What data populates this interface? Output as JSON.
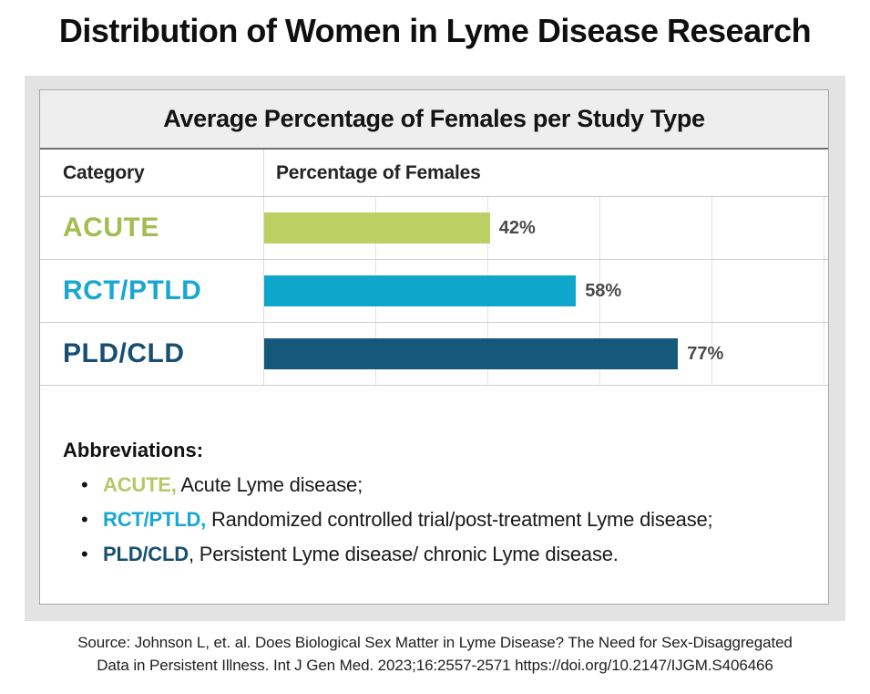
{
  "page_title": "Distribution of Women in Lyme Disease Research",
  "chart_data": {
    "type": "bar",
    "orientation": "horizontal",
    "title": "Average Percentage of Females per Study Type",
    "columns": [
      "Category",
      "Percentage of Females"
    ],
    "categories": [
      "ACUTE",
      "RCT/PTLD",
      "PLD/CLD"
    ],
    "values": [
      42,
      58,
      77
    ],
    "value_labels": [
      "42%",
      "58%",
      "77%"
    ],
    "bar_colors": [
      "#bccf63",
      "#0fa6cc",
      "#15587b"
    ],
    "label_colors": [
      "#a2bd50",
      "#18a7d3",
      "#174f71"
    ],
    "xlim": [
      0,
      100
    ],
    "grid": true,
    "gridline_step_percent": 20
  },
  "abbreviations": {
    "heading": "Abbreviations:",
    "bullet_icon": "•",
    "items": [
      {
        "term": "ACUTE,",
        "term_color": "#b4c96b",
        "text": " Acute Lyme disease;"
      },
      {
        "term": "RCT/PTLD,",
        "term_color": "#18a7d3",
        "text": " Randomized controlled trial/post-treatment Lyme disease;"
      },
      {
        "term": "PLD/CLD",
        "term_color": "#174f71",
        "text": ", Persistent Lyme disease/ chronic Lyme disease."
      }
    ]
  },
  "source": {
    "line1": "Source: Johnson L, et. al. Does Biological Sex Matter in Lyme Disease? The Need for Sex-Disaggregated",
    "line2": "Data in Persistent Illness. Int J Gen Med. 2023;16:2557-2571 https://doi.org/10.2147/IJGM.S406466"
  }
}
